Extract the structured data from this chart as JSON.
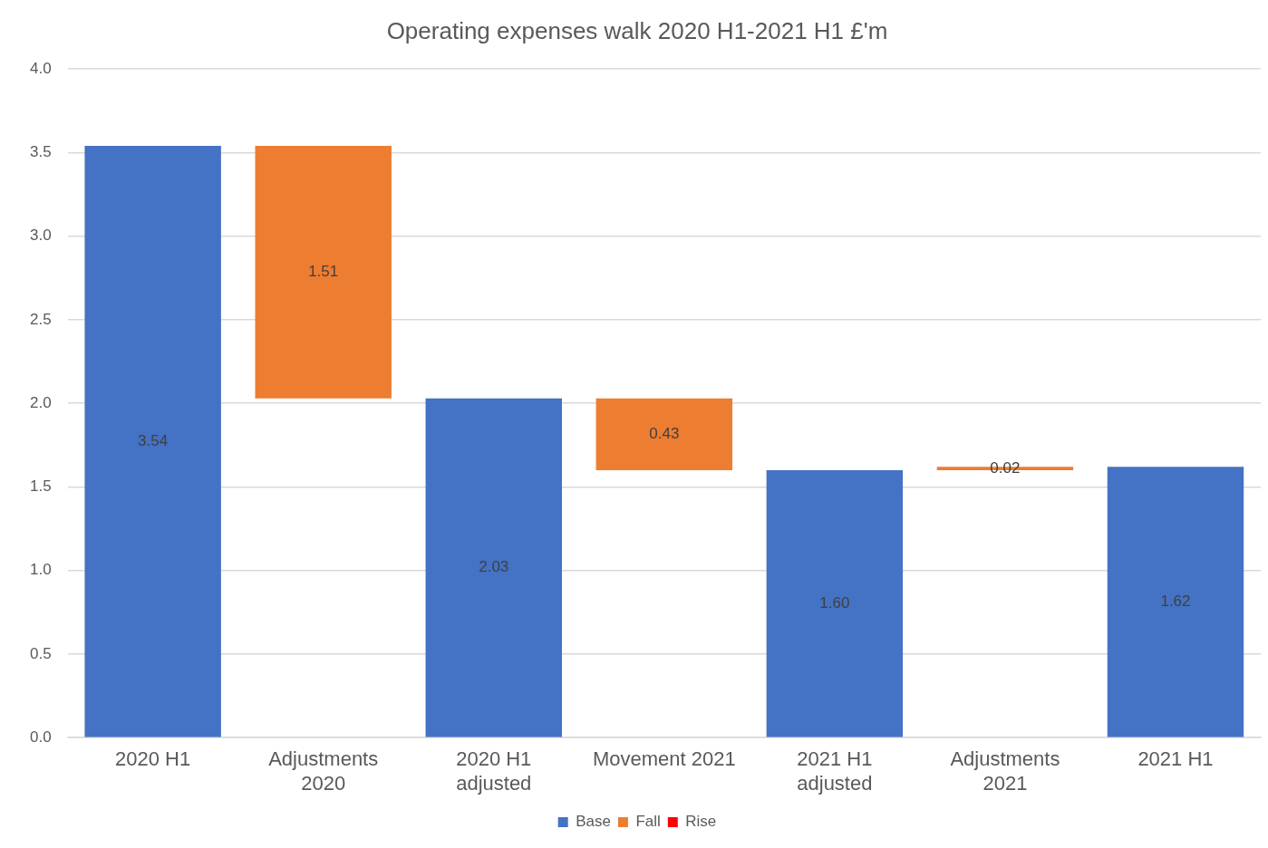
{
  "chart_data": {
    "type": "bar",
    "title": "Operating expenses walk 2020 H1-2021 H1 £'m",
    "categories": [
      "2020 H1",
      "Adjustments 2020",
      "2020 H1 adjusted",
      "Movement 2021",
      "2021 H1 adjusted",
      "Adjustments 2021",
      "2021 H1"
    ],
    "series": [
      {
        "name": "Base",
        "color": "#4472c4",
        "values": [
          3.54,
          null,
          2.03,
          null,
          1.6,
          null,
          1.62
        ],
        "value_labels": [
          "3.54",
          null,
          "2.03",
          null,
          "1.60",
          null,
          "1.62"
        ]
      },
      {
        "name": "Fall",
        "color": "#ed7d31",
        "values": [
          null,
          1.51,
          null,
          0.43,
          null,
          0.02,
          null
        ],
        "base": [
          null,
          2.03,
          null,
          1.6,
          null,
          1.6,
          null
        ],
        "value_labels": [
          null,
          "1.51",
          null,
          "0.43",
          null,
          "0.02",
          null
        ]
      },
      {
        "name": "Rise",
        "color": "#ff0000",
        "values": [
          null,
          null,
          null,
          null,
          null,
          null,
          null
        ]
      }
    ],
    "ylim": [
      0,
      4
    ],
    "yticks": [
      {
        "value": 0,
        "label": "0.0"
      },
      {
        "value": 0.5,
        "label": "0.5"
      },
      {
        "value": 1,
        "label": "1.0"
      },
      {
        "value": 1.5,
        "label": "1.5"
      },
      {
        "value": 2,
        "label": "2.0"
      },
      {
        "value": 2.5,
        "label": "2.5"
      },
      {
        "value": 3,
        "label": "3.0"
      },
      {
        "value": 3.5,
        "label": "3.5"
      },
      {
        "value": 4,
        "label": "4.0"
      }
    ],
    "grid": "y",
    "legend": "bottom"
  }
}
